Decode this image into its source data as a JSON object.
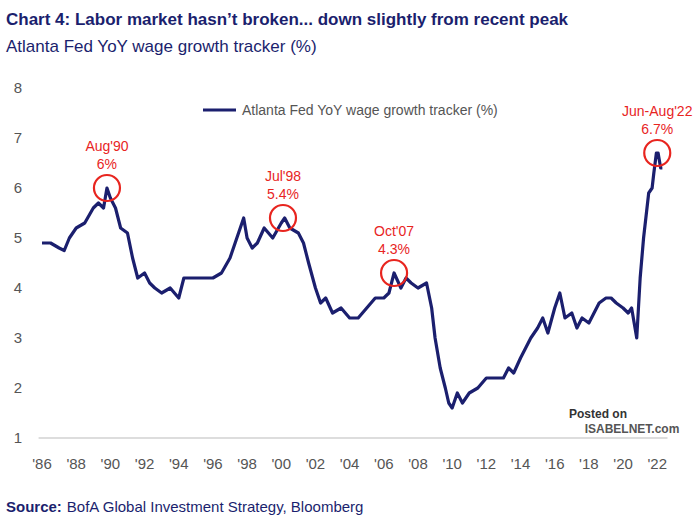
{
  "chart_data": {
    "type": "line",
    "title": "Chart 4: Labor market hasn’t broken... down slightly from recent peak",
    "subtitle": "Atlanta Fed YoY wage growth tracker (%)",
    "source_label": "Source:",
    "source": "BofA Global Investment Strategy, Bloomberg",
    "watermark": [
      "Posted on",
      "ISABELNET.com"
    ],
    "x": [
      1986.0,
      1986.5,
      1987.0,
      1987.3,
      1987.6,
      1988.0,
      1988.5,
      1989.0,
      1989.3,
      1989.6,
      1989.8,
      1990.0,
      1990.3,
      1990.6,
      1991.0,
      1991.3,
      1991.6,
      1992.0,
      1992.3,
      1992.6,
      1993.0,
      1993.5,
      1994.0,
      1994.3,
      1994.6,
      1995.0,
      1996.0,
      1996.5,
      1997.0,
      1997.3,
      1997.6,
      1997.8,
      1998.0,
      1998.3,
      1998.6,
      1999.0,
      1999.5,
      2000.0,
      2000.2,
      2000.5,
      2001.0,
      2001.3,
      2001.6,
      2002.0,
      2002.3,
      2002.6,
      2003.0,
      2003.5,
      2004.0,
      2004.5,
      2005.0,
      2005.5,
      2006.0,
      2006.3,
      2006.6,
      2007.0,
      2007.3,
      2007.6,
      2008.0,
      2008.5,
      2008.8,
      2009.0,
      2009.3,
      2009.6,
      2009.8,
      2010.0,
      2010.3,
      2010.6,
      2011.0,
      2011.5,
      2012.0,
      2012.5,
      2013.0,
      2013.3,
      2013.6,
      2014.0,
      2014.3,
      2014.6,
      2015.0,
      2015.3,
      2015.6,
      2016.0,
      2016.3,
      2016.6,
      2017.0,
      2017.3,
      2017.6,
      2018.0,
      2018.3,
      2018.6,
      2019.0,
      2019.3,
      2019.6,
      2020.0,
      2020.3,
      2020.5,
      2020.8,
      2021.0,
      2021.2,
      2021.5,
      2021.7,
      2021.8,
      2021.95,
      2022.05,
      2022.2,
      2022.3
    ],
    "series": [
      {
        "name": "Atlanta Fed YoY wage growth tracker (%)",
        "color": "#1b1f6e",
        "values": [
          4.9,
          4.9,
          4.8,
          4.75,
          5.0,
          5.2,
          5.3,
          5.6,
          5.7,
          5.6,
          6.0,
          5.8,
          5.6,
          5.2,
          5.1,
          4.6,
          4.2,
          4.3,
          4.1,
          4.0,
          3.9,
          4.0,
          3.8,
          4.2,
          4.2,
          4.2,
          4.2,
          4.3,
          4.6,
          4.9,
          5.2,
          5.4,
          5.0,
          4.8,
          4.9,
          5.2,
          5.0,
          5.3,
          5.4,
          5.2,
          5.1,
          4.9,
          4.5,
          4.0,
          3.7,
          3.8,
          3.5,
          3.6,
          3.4,
          3.4,
          3.6,
          3.8,
          3.8,
          3.9,
          4.3,
          4.0,
          4.2,
          4.1,
          4.0,
          4.1,
          3.6,
          3.0,
          2.4,
          2.0,
          1.7,
          1.6,
          1.9,
          1.7,
          1.9,
          2.0,
          2.2,
          2.2,
          2.2,
          2.4,
          2.3,
          2.6,
          2.8,
          3.0,
          3.2,
          3.4,
          3.1,
          3.6,
          3.9,
          3.4,
          3.5,
          3.2,
          3.4,
          3.3,
          3.5,
          3.7,
          3.8,
          3.8,
          3.7,
          3.6,
          3.5,
          3.6,
          3.0,
          4.2,
          5.0,
          5.9,
          6.0,
          6.3,
          6.7,
          6.7,
          6.4,
          6.4
        ]
      }
    ],
    "annotations": [
      {
        "label": "Aug'90",
        "text": "6%",
        "x": 1989.8,
        "y": 6.0
      },
      {
        "label": "Jul'98",
        "text": "5.4%",
        "x": 2000.1,
        "y": 5.4
      },
      {
        "label": "Oct'07",
        "text": "4.3%",
        "x": 2006.6,
        "y": 4.3
      },
      {
        "label": "Jun-Aug'22",
        "text": "6.7%",
        "x": 2022.0,
        "y": 6.7
      }
    ],
    "xlim": [
      1985.8,
      2022.6
    ],
    "xticks": [
      {
        "value": 1986,
        "label": "'86"
      },
      {
        "value": 1988,
        "label": "'88"
      },
      {
        "value": 1990,
        "label": "'90"
      },
      {
        "value": 1992,
        "label": "'92"
      },
      {
        "value": 1994,
        "label": "'94"
      },
      {
        "value": 1996,
        "label": "'96"
      },
      {
        "value": 1998,
        "label": "'98"
      },
      {
        "value": 2000,
        "label": "'00"
      },
      {
        "value": 2002,
        "label": "'02"
      },
      {
        "value": 2004,
        "label": "'04"
      },
      {
        "value": 2006,
        "label": "'06"
      },
      {
        "value": 2008,
        "label": "'08"
      },
      {
        "value": 2010,
        "label": "'10"
      },
      {
        "value": 2012,
        "label": "'12"
      },
      {
        "value": 2014,
        "label": "'14"
      },
      {
        "value": 2016,
        "label": "'16"
      },
      {
        "value": 2018,
        "label": "'18"
      },
      {
        "value": 2020,
        "label": "'20"
      },
      {
        "value": 2022,
        "label": "'22"
      }
    ],
    "ylim": [
      1,
      8
    ],
    "yticks": [
      1,
      2,
      3,
      4,
      5,
      6,
      7,
      8
    ],
    "grid": false,
    "legend": "top"
  }
}
